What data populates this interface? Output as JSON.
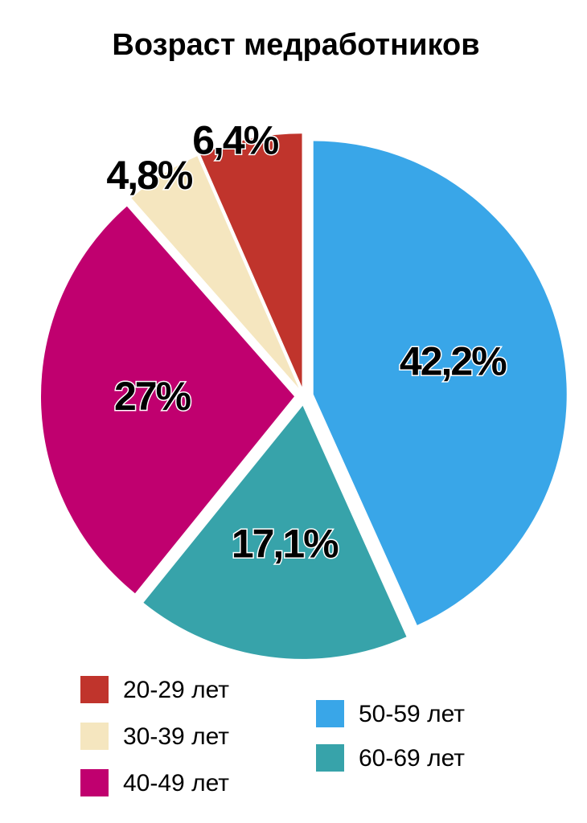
{
  "chart_data": {
    "type": "pie",
    "title": "Возраст медработников",
    "categories": [
      "20-29 лет",
      "30-39 лет",
      "40-49 лет",
      "50-59 лет",
      "60-69 лет"
    ],
    "values": [
      6.4,
      4.8,
      27,
      42.2,
      17.1
    ],
    "value_labels": [
      "6,4%",
      "4,8%",
      "27%",
      "42,2%",
      "17,1%"
    ],
    "colors": [
      "#c0342c",
      "#f5e6bf",
      "#c0006f",
      "#39a6e8",
      "#37a3aa"
    ]
  }
}
